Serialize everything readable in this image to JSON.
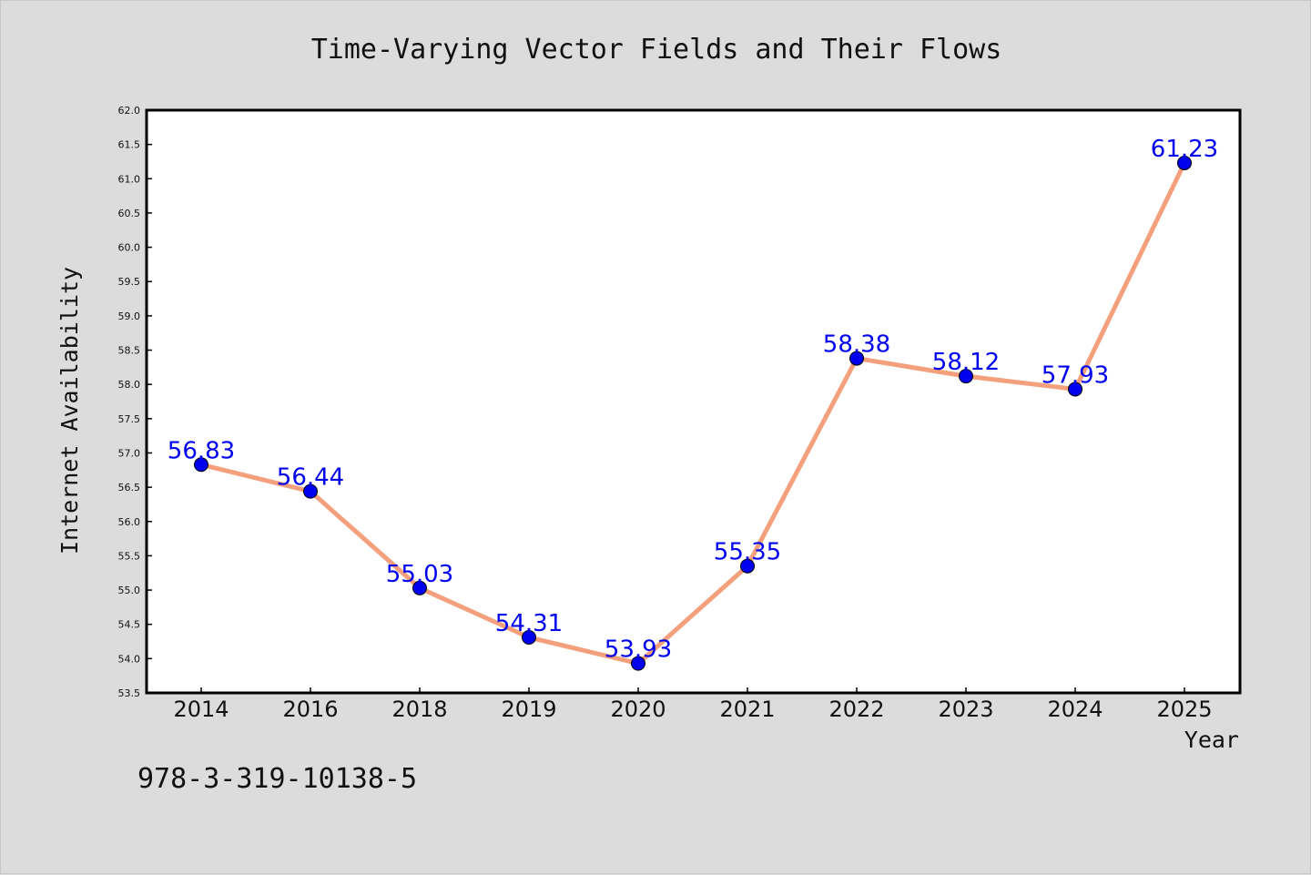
{
  "chart_data": {
    "type": "line",
    "title": "Time-Varying Vector Fields and Their Flows",
    "xlabel": "Year",
    "ylabel": "Internet Availability",
    "categories": [
      "2014",
      "2016",
      "2018",
      "2019",
      "2020",
      "2021",
      "2022",
      "2023",
      "2024",
      "2025"
    ],
    "series": [
      {
        "values": [
          56.83,
          56.44,
          55.03,
          54.31,
          53.93,
          55.35,
          58.38,
          58.12,
          57.93,
          61.23
        ]
      }
    ],
    "data_labels": [
      "56.83",
      "56.44",
      "55.03",
      "54.31",
      "53.93",
      "55.35",
      "58.38",
      "58.12",
      "57.93",
      "61.23"
    ],
    "ylim": [
      53.5,
      62.0
    ],
    "yticks": [
      "53.5",
      "54.0",
      "54.5",
      "55.0",
      "55.5",
      "56.0",
      "56.5",
      "57.0",
      "57.5",
      "58.0",
      "58.5",
      "59.0",
      "59.5",
      "60.0",
      "60.5",
      "61.0",
      "61.5",
      "62.0"
    ],
    "grid": false,
    "colors": {
      "line": "#f4a07c",
      "marker": "#0000ee",
      "label": "#0000ee",
      "background": "#dcdcdc",
      "plot_background": "#ffffff"
    }
  },
  "footer": {
    "code": "978-3-319-10138-5"
  }
}
